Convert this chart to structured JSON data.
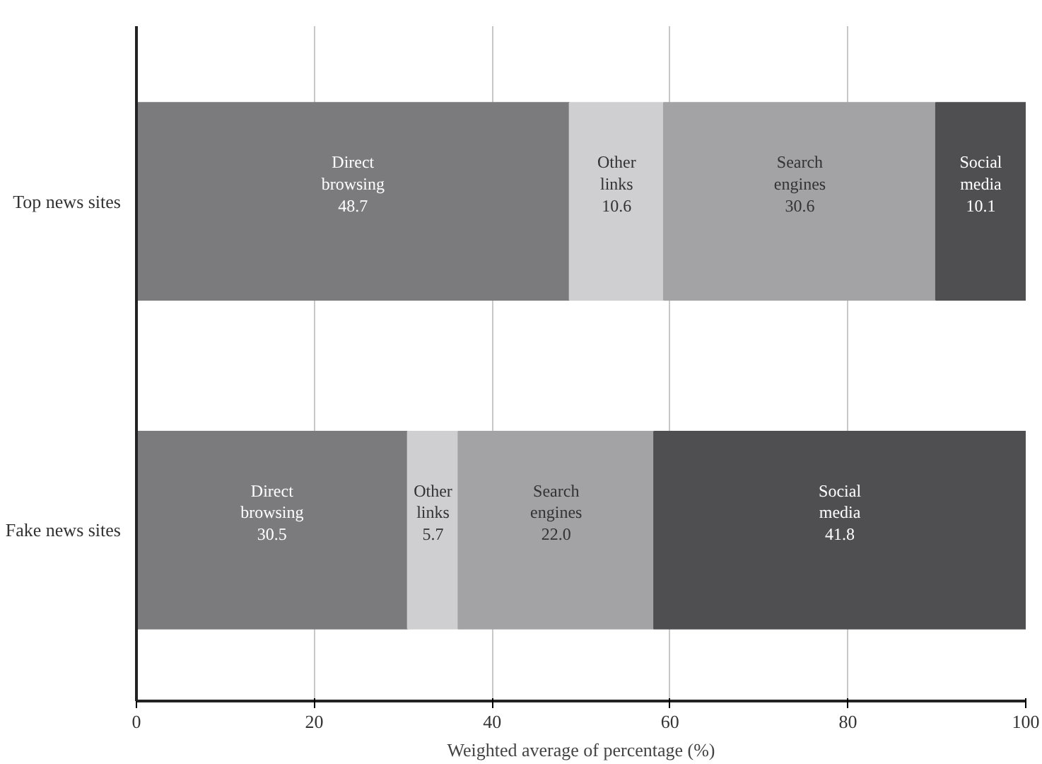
{
  "chart_data": {
    "type": "bar",
    "orientation": "horizontal",
    "stacked": true,
    "xlabel": "Weighted average of percentage (%)",
    "categories": [
      "Top news sites",
      "Fake news sites"
    ],
    "series": [
      {
        "name": "Direct browsing",
        "color": "#7b7b7d",
        "values": [
          48.7,
          30.5
        ],
        "value_labels": [
          "48.7",
          "30.5"
        ]
      },
      {
        "name": "Other links",
        "color": "#cfcfd1",
        "values": [
          10.6,
          5.7
        ],
        "value_labels": [
          "10.6",
          "5.7"
        ]
      },
      {
        "name": "Search engines",
        "color": "#a3a3a5",
        "values": [
          30.6,
          22.0
        ],
        "value_labels": [
          "30.6",
          "22.0"
        ]
      },
      {
        "name": "Social media",
        "color": "#4f4f51",
        "values": [
          10.1,
          41.8
        ],
        "value_labels": [
          "10.1",
          "41.8"
        ]
      }
    ],
    "xlim": [
      0,
      100
    ],
    "xticks": [
      0,
      20,
      40,
      60,
      80,
      100
    ],
    "grid": "x"
  }
}
